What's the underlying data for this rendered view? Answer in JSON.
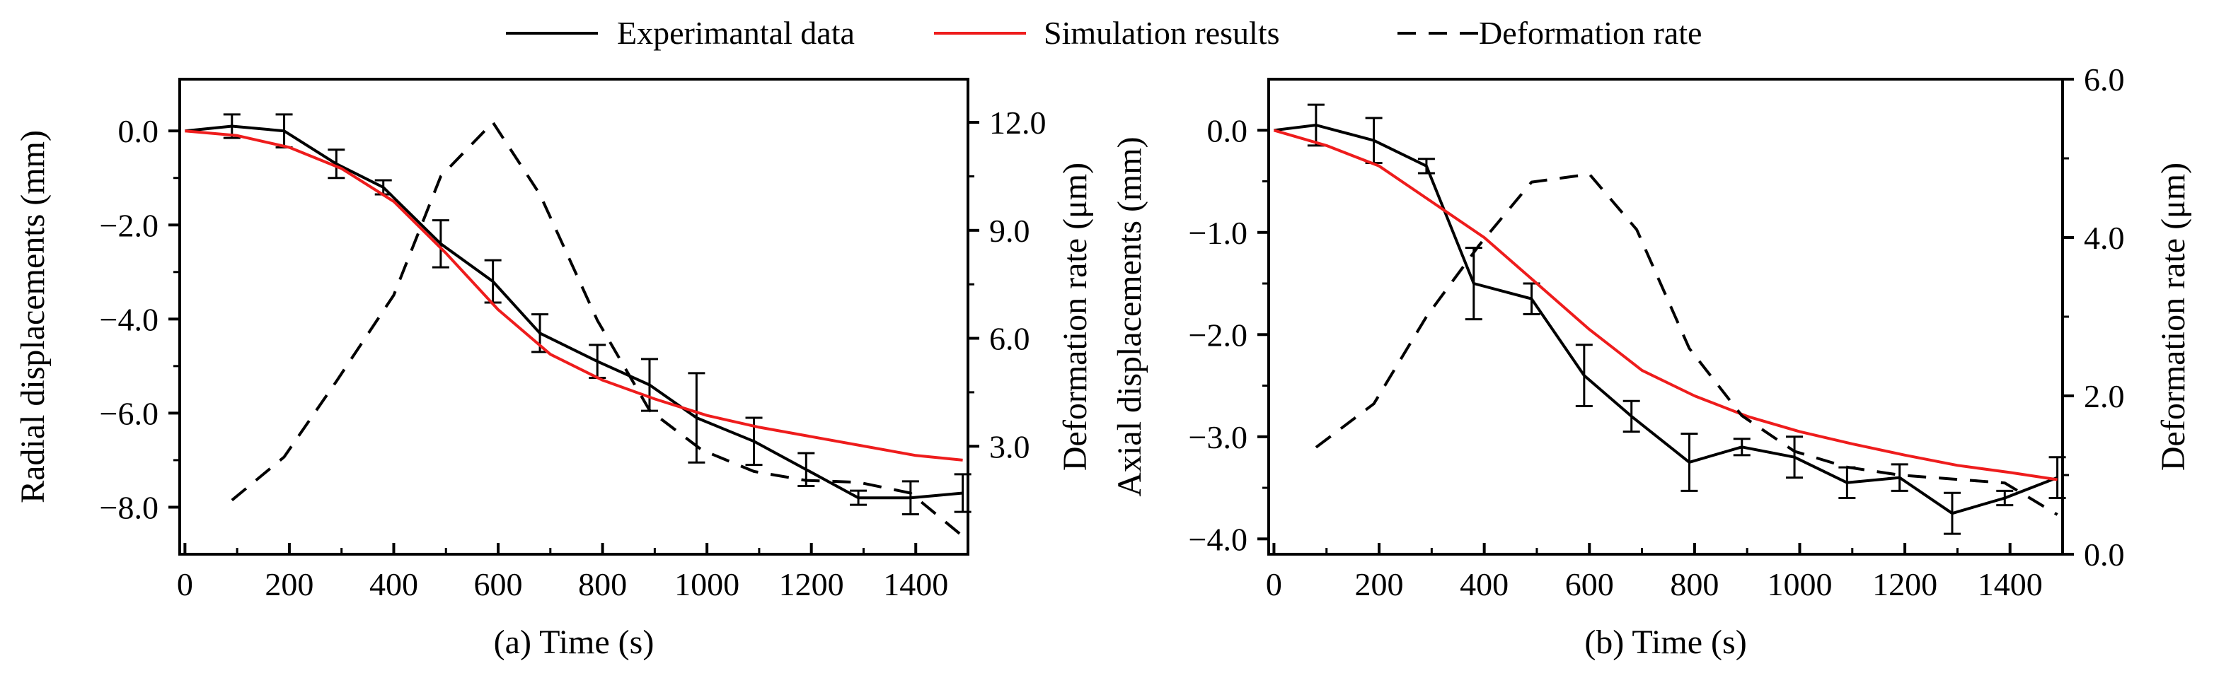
{
  "legend": {
    "items": [
      {
        "label": "Experimantal data",
        "style": "solid",
        "color": "#000000"
      },
      {
        "label": "Simulation results",
        "style": "solid",
        "color": "#ee1c1c"
      },
      {
        "label": "Deformation rate",
        "style": "dashed",
        "color": "#000000"
      }
    ]
  },
  "chart_data": [
    {
      "type": "line",
      "caption": "(a) Time (s)",
      "ylabel_left": "Radial displacements (mm)",
      "ylabel_right": "Deformation rate  (μm)",
      "xlim": [
        -10,
        1500
      ],
      "ylim_left": [
        -9.0,
        1.1
      ],
      "ylim_right": [
        0.0,
        13.2
      ],
      "xticks": [
        0,
        200,
        400,
        600,
        800,
        1000,
        1200,
        1400
      ],
      "xtick_labels": [
        "0",
        "200",
        "400",
        "600",
        "800",
        "1000",
        "1200",
        "1400"
      ],
      "yticks_left": [
        0,
        -2,
        -4,
        -6,
        -8
      ],
      "ytick_labels_left": [
        "0.0",
        "-2.0",
        "-4.0",
        "-6.0",
        "-8.0"
      ],
      "yticks_right": [
        3,
        6,
        9,
        12
      ],
      "ytick_labels_right": [
        "3.0",
        "6.0",
        "9.0",
        "12.0"
      ],
      "series": [
        {
          "name": "Experimantal data",
          "axis": "left",
          "style": "solid",
          "color": "#000000",
          "x": [
            0,
            90,
            190,
            290,
            380,
            490,
            590,
            680,
            790,
            890,
            980,
            1090,
            1190,
            1290,
            1390,
            1490
          ],
          "values": [
            0.0,
            0.1,
            0.0,
            -0.7,
            -1.2,
            -2.4,
            -3.2,
            -4.3,
            -4.9,
            -5.4,
            -6.1,
            -6.6,
            -7.2,
            -7.8,
            -7.8,
            -7.7
          ],
          "errors": [
            0,
            0.25,
            0.35,
            0.3,
            0.15,
            0.5,
            0.45,
            0.4,
            0.35,
            0.55,
            0.95,
            0.5,
            0.35,
            0.15,
            0.35,
            0.4
          ]
        },
        {
          "name": "Simulation results",
          "axis": "left",
          "style": "solid",
          "color": "#ee1c1c",
          "x": [
            0,
            100,
            200,
            300,
            400,
            500,
            600,
            700,
            800,
            900,
            1000,
            1100,
            1200,
            1300,
            1400,
            1490
          ],
          "values": [
            0.0,
            -0.1,
            -0.35,
            -0.8,
            -1.5,
            -2.6,
            -3.8,
            -4.75,
            -5.3,
            -5.7,
            -6.05,
            -6.3,
            -6.5,
            -6.7,
            -6.9,
            -7.0
          ]
        },
        {
          "name": "Deformation rate",
          "axis": "right",
          "style": "dashed",
          "color": "#000000",
          "x": [
            90,
            190,
            290,
            400,
            490,
            590,
            680,
            790,
            890,
            990,
            1090,
            1190,
            1290,
            1390,
            1490
          ],
          "values": [
            1.5,
            2.7,
            4.8,
            7.2,
            10.5,
            12.0,
            10.0,
            6.5,
            4.0,
            2.9,
            2.3,
            2.05,
            2.0,
            1.7,
            0.5
          ]
        }
      ]
    },
    {
      "type": "line",
      "caption": "(b) Time (s)",
      "ylabel_left": "Axial displacements (mm)",
      "ylabel_right": "Deformation rate  (μm)",
      "xlim": [
        -10,
        1500
      ],
      "ylim_left": [
        -4.15,
        0.5
      ],
      "ylim_right": [
        0.0,
        6.0
      ],
      "xticks": [
        0,
        200,
        400,
        600,
        800,
        1000,
        1200,
        1400
      ],
      "xtick_labels": [
        "0",
        "200",
        "400",
        "600",
        "800",
        "1000",
        "1200",
        "1400"
      ],
      "yticks_left": [
        0,
        -1,
        -2,
        -3,
        -4
      ],
      "ytick_labels_left": [
        "0.0",
        "-1.0",
        "-2.0",
        "-3.0",
        "-4.0"
      ],
      "yticks_right": [
        0,
        2,
        4,
        6
      ],
      "ytick_labels_right": [
        "0.0",
        "2.0",
        "4.0",
        "6.0"
      ],
      "series": [
        {
          "name": "Experimantal data",
          "axis": "left",
          "style": "solid",
          "color": "#000000",
          "x": [
            0,
            80,
            190,
            290,
            380,
            490,
            590,
            680,
            790,
            890,
            990,
            1090,
            1190,
            1290,
            1390,
            1490
          ],
          "values": [
            0.0,
            0.05,
            -0.1,
            -0.35,
            -1.5,
            -1.65,
            -2.4,
            -2.8,
            -3.25,
            -3.1,
            -3.2,
            -3.45,
            -3.4,
            -3.75,
            -3.6,
            -3.4
          ],
          "errors": [
            0,
            0.2,
            0.22,
            0.07,
            0.35,
            0.15,
            0.3,
            0.15,
            0.28,
            0.08,
            0.2,
            0.15,
            0.13,
            0.2,
            0.07,
            0.2
          ]
        },
        {
          "name": "Simulation results",
          "axis": "left",
          "style": "solid",
          "color": "#ee1c1c",
          "x": [
            0,
            100,
            200,
            300,
            400,
            500,
            600,
            700,
            800,
            900,
            1000,
            1100,
            1200,
            1300,
            1400,
            1490
          ],
          "values": [
            0.0,
            -0.15,
            -0.35,
            -0.7,
            -1.05,
            -1.5,
            -1.95,
            -2.35,
            -2.6,
            -2.8,
            -2.95,
            -3.07,
            -3.18,
            -3.28,
            -3.35,
            -3.42
          ]
        },
        {
          "name": "Deformation rate",
          "axis": "right",
          "style": "dashed",
          "color": "#000000",
          "x": [
            80,
            190,
            290,
            390,
            490,
            600,
            690,
            790,
            890,
            990,
            1090,
            1190,
            1290,
            1390,
            1490
          ],
          "values": [
            1.35,
            1.9,
            3.0,
            3.9,
            4.7,
            4.8,
            4.1,
            2.6,
            1.75,
            1.3,
            1.1,
            1.0,
            0.95,
            0.9,
            0.5
          ]
        }
      ]
    }
  ]
}
